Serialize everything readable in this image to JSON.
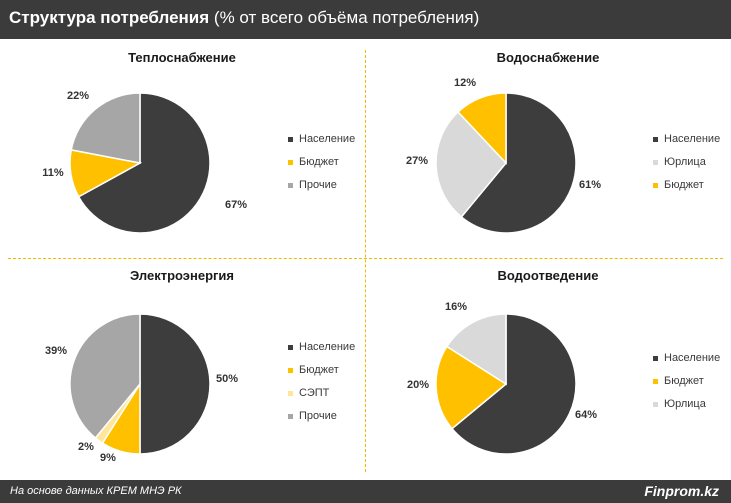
{
  "header": {
    "title_bold": "Структура потребления",
    "title_rest": " (% от всего объёма потребления)"
  },
  "footer": {
    "source": "На основе данных КРЕМ МНЭ РК",
    "brand": "Finprom.kz"
  },
  "colors": {
    "header_bg": "#3b3b3b",
    "accent": "#f2b900",
    "naselenie": "#3d3d3d",
    "budget": "#ffc000",
    "prochie": "#a6a6a6",
    "yurlica": "#d9d9d9",
    "sept": "#ffe699"
  },
  "chart_data": [
    {
      "type": "pie",
      "title": "Теплоснабжение",
      "series": [
        {
          "name": "Население",
          "value": 67,
          "label": "67%",
          "color": "#3d3d3d"
        },
        {
          "name": "Бюджет",
          "value": 11,
          "label": "11%",
          "color": "#ffc000"
        },
        {
          "name": "Прочие",
          "value": 22,
          "label": "22%",
          "color": "#a6a6a6"
        }
      ]
    },
    {
      "type": "pie",
      "title": "Водоснабжение",
      "series": [
        {
          "name": "Население",
          "value": 61,
          "label": "61%",
          "color": "#3d3d3d"
        },
        {
          "name": "Юрлица",
          "value": 27,
          "label": "27%",
          "color": "#d9d9d9"
        },
        {
          "name": "Бюджет",
          "value": 12,
          "label": "12%",
          "color": "#ffc000"
        }
      ]
    },
    {
      "type": "pie",
      "title": "Электроэнергия",
      "series": [
        {
          "name": "Население",
          "value": 50,
          "label": "50%",
          "color": "#3d3d3d"
        },
        {
          "name": "Бюджет",
          "value": 9,
          "label": "9%",
          "color": "#ffc000"
        },
        {
          "name": "СЭПТ",
          "value": 2,
          "label": "2%",
          "color": "#ffe699"
        },
        {
          "name": "Прочие",
          "value": 39,
          "label": "39%",
          "color": "#a6a6a6"
        }
      ]
    },
    {
      "type": "pie",
      "title": "Водоотведение",
      "series": [
        {
          "name": "Население",
          "value": 64,
          "label": "64%",
          "color": "#3d3d3d"
        },
        {
          "name": "Бюджет",
          "value": 20,
          "label": "20%",
          "color": "#ffc000"
        },
        {
          "name": "Юрлица",
          "value": 16,
          "label": "16%",
          "color": "#d9d9d9"
        }
      ]
    }
  ]
}
